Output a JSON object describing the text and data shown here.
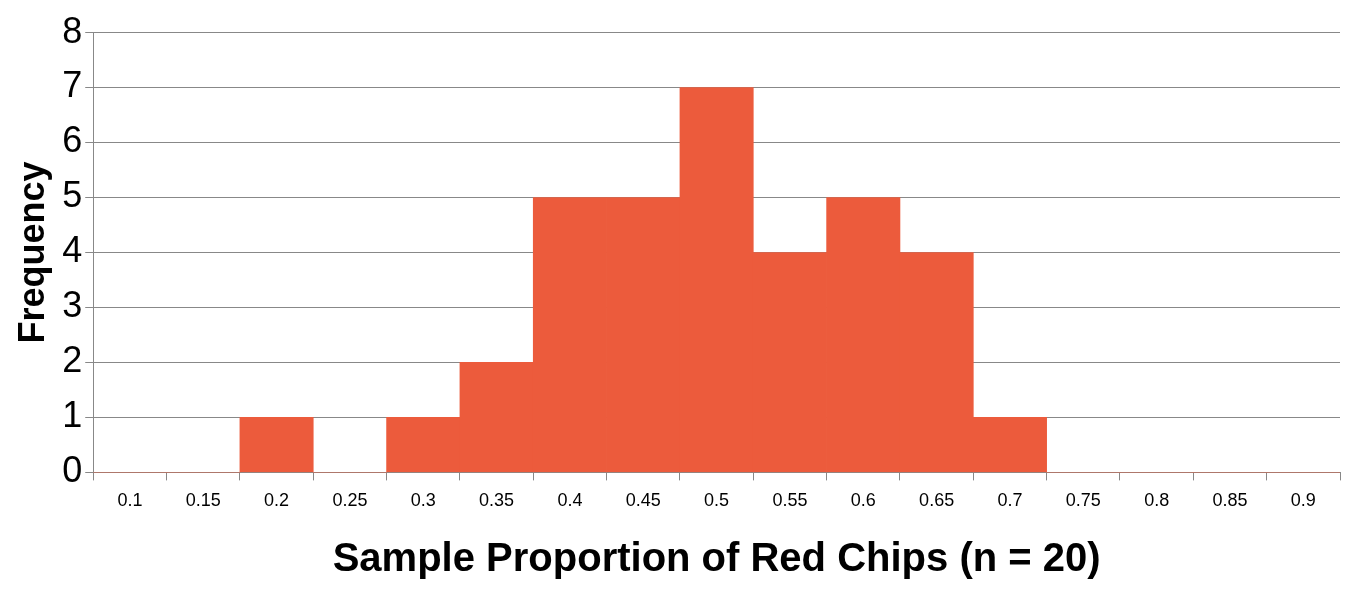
{
  "chart_data": {
    "type": "bar",
    "xlabel": "Sample Proportion of Red Chips (n = 20)",
    "ylabel": "Frequency",
    "categories": [
      "0.1",
      "0.15",
      "0.2",
      "0.25",
      "0.3",
      "0.35",
      "0.4",
      "0.45",
      "0.5",
      "0.55",
      "0.6",
      "0.65",
      "0.7",
      "0.75",
      "0.8",
      "0.85",
      "0.9"
    ],
    "values": [
      0,
      0,
      1,
      0,
      1,
      2,
      5,
      5,
      7,
      4,
      5,
      4,
      1,
      0,
      0,
      0,
      0
    ],
    "color": "#ec5b3c",
    "ylim": [
      0,
      8
    ],
    "yticks": [
      0,
      1,
      2,
      3,
      4,
      5,
      6,
      7,
      8
    ],
    "grid": "y",
    "legend": false
  }
}
